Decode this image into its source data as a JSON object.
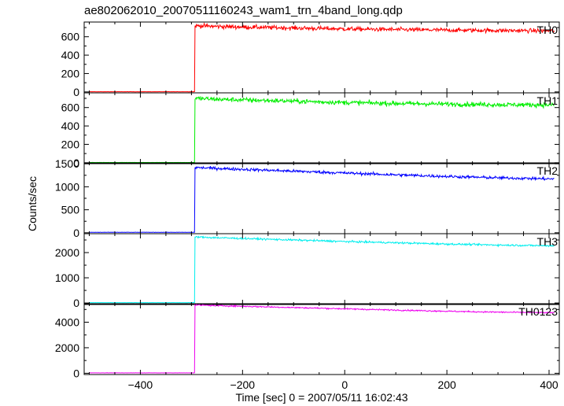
{
  "chart_data": {
    "type": "line",
    "title": "ae802062010_20070511160243_wam1_trn_4band_long.qdp",
    "xlabel": "Time [sec] 0 = 2007/05/11 16:02:43",
    "ylabel": "Counts/sec",
    "xlim": [
      -510,
      420
    ],
    "x_ticks": [
      -400,
      -200,
      0,
      200,
      400
    ],
    "x_tick_labels": [
      "−400",
      "−200",
      "0",
      "200",
      "400"
    ],
    "onset_time": -293,
    "grid": false,
    "panels": [
      {
        "name": "TH0",
        "color": "#ff0000",
        "ylim": [
          -10,
          760
        ],
        "y_ticks": [
          0,
          200,
          400,
          600
        ],
        "background": 2,
        "x_start": -500,
        "x_end": 410,
        "profile": {
          "x": [
            -293,
            -250,
            -100,
            0,
            100,
            200,
            300,
            410
          ],
          "y": [
            720,
            712,
            695,
            685,
            678,
            672,
            668,
            665
          ]
        },
        "noise": 22
      },
      {
        "name": "TH1",
        "color": "#00ee00",
        "ylim": [
          -10,
          760
        ],
        "y_ticks": [
          0,
          200,
          400,
          600
        ],
        "background": 3,
        "x_start": -500,
        "x_end": 410,
        "profile": {
          "x": [
            -293,
            -250,
            -100,
            0,
            100,
            200,
            300,
            410
          ],
          "y": [
            700,
            690,
            670,
            655,
            645,
            638,
            632,
            628
          ]
        },
        "noise": 24
      },
      {
        "name": "TH2",
        "color": "#0000ff",
        "ylim": [
          -20,
          1520
        ],
        "y_ticks": [
          0,
          500,
          1000,
          1500
        ],
        "background": 10,
        "x_start": -500,
        "x_end": 410,
        "profile": {
          "x": [
            -293,
            -250,
            -100,
            0,
            100,
            200,
            300,
            410
          ],
          "y": [
            1420,
            1400,
            1340,
            1300,
            1260,
            1225,
            1195,
            1170
          ]
        },
        "noise": 30
      },
      {
        "name": "TH3",
        "color": "#00eeee",
        "ylim": [
          -60,
          2750
        ],
        "y_ticks": [
          0,
          1000,
          2000
        ],
        "background": 15,
        "x_start": -500,
        "x_end": 410,
        "profile": {
          "x": [
            -293,
            -250,
            -100,
            0,
            100,
            200,
            300,
            410
          ],
          "y": [
            2620,
            2590,
            2500,
            2440,
            2390,
            2340,
            2300,
            2270
          ]
        },
        "noise": 35
      },
      {
        "name": "TH0123",
        "color": "#ee00ee",
        "ylim": [
          -100,
          5450
        ],
        "y_ticks": [
          0,
          2000,
          4000
        ],
        "background": 30,
        "x_start": -500,
        "x_end": 410,
        "profile": {
          "x": [
            -293,
            -250,
            -100,
            0,
            100,
            200,
            300,
            410
          ],
          "y": [
            5350,
            5300,
            5150,
            5050,
            4950,
            4860,
            4790,
            4740
          ]
        },
        "noise": 50
      }
    ]
  }
}
